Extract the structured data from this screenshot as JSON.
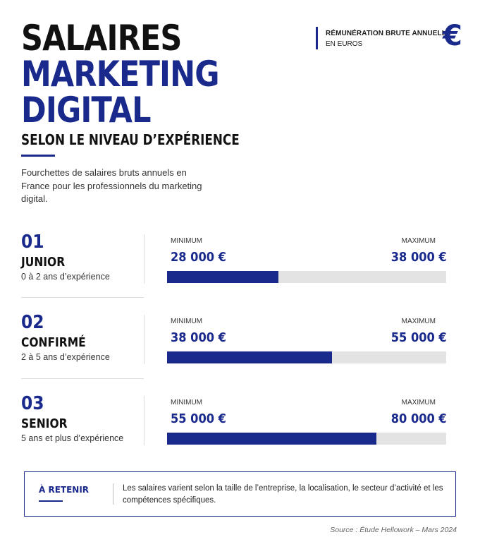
{
  "header": {
    "title_line1": "SALAIRES",
    "title_line2": "MARKETING",
    "title_line3": "DIGITAL",
    "subtitle": "SELON LE NIVEAU D’EXPÉRIENCE",
    "intro": "Fourchettes de salaires bruts annuels en France pour les professionnels du marketing digital."
  },
  "corner": {
    "title": "RÉMUNÉRATION BRUTE ANNUELLE",
    "unit": "EN EUROS",
    "icon": "euro-icon",
    "icon_glyph": "€"
  },
  "colors": {
    "accent": "#1a2a8c",
    "track": "#e3e3e3",
    "text": "#111111"
  },
  "levels": [
    {
      "number": "01",
      "name": "JUNIOR",
      "description": "0 à 2 ans d’expérience",
      "min_label": "MINIMUM",
      "max_label": "MAXIMUM",
      "min_value": "28 000 €",
      "max_value": "38 000 €",
      "fill_fraction": 0.4
    },
    {
      "number": "02",
      "name": "CONFIRMÉ",
      "description": "2 à 5 ans d’expérience",
      "min_label": "MINIMUM",
      "max_label": "MAXIMUM",
      "min_value": "38 000 €",
      "max_value": "55 000 €",
      "fill_fraction": 0.59
    },
    {
      "number": "03",
      "name": "SENIOR",
      "description": "5 ans et plus d’expérience",
      "min_label": "MINIMUM",
      "max_label": "MAXIMUM",
      "min_value": "55 000 €",
      "max_value": "80 000 €",
      "fill_fraction": 0.75
    }
  ],
  "note": {
    "title": "À RETENIR",
    "text": "Les salaires varient selon la taille de l’entreprise, la localisation, le secteur d’activité et les compétences spécifiques."
  },
  "footer": {
    "source": "Source : Étude Hellowork – Mars 2024"
  }
}
